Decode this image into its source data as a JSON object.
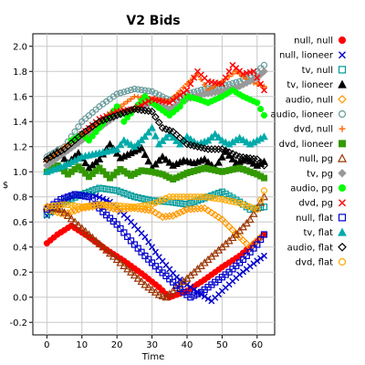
{
  "chart_data": {
    "type": "scatter",
    "title": "V2 Bids",
    "xlabel": "Time",
    "ylabel": "$",
    "xlim": [
      -4,
      65
    ],
    "ylim": [
      -0.3,
      2.1
    ],
    "xticks": [
      "0",
      "10",
      "20",
      "30",
      "40",
      "50",
      "60"
    ],
    "xtick_values": [
      0,
      10,
      20,
      30,
      40,
      50,
      60
    ],
    "yticks": [
      "-0.2",
      "0.0",
      "0.2",
      "0.4",
      "0.6",
      "0.8",
      "1.0",
      "1.2",
      "1.4",
      "1.6",
      "1.8",
      "2.0"
    ],
    "ytick_values": [
      -0.2,
      0.0,
      0.2,
      0.4,
      0.6,
      0.8,
      1.0,
      1.2,
      1.4,
      1.6,
      1.8,
      2.0
    ],
    "grid": true,
    "legend_position": "right",
    "series": [
      {
        "name": "null, null",
        "color": "#ff0000",
        "marker": "circle-filled",
        "points": [
          [
            0,
            0.43
          ],
          [
            3,
            0.5
          ],
          [
            7,
            0.57
          ],
          [
            12,
            0.48
          ],
          [
            17,
            0.38
          ],
          [
            22,
            0.29
          ],
          [
            27,
            0.19
          ],
          [
            32,
            0.08
          ],
          [
            35,
            0.0
          ],
          [
            40,
            0.05
          ],
          [
            45,
            0.14
          ],
          [
            50,
            0.24
          ],
          [
            55,
            0.33
          ],
          [
            60,
            0.45
          ],
          [
            62,
            0.5
          ]
        ]
      },
      {
        "name": "null, lioneer",
        "color": "#0000cc",
        "marker": "cross",
        "points": [
          [
            0,
            0.65
          ],
          [
            4,
            0.74
          ],
          [
            8,
            0.82
          ],
          [
            13,
            0.82
          ],
          [
            18,
            0.76
          ],
          [
            23,
            0.63
          ],
          [
            28,
            0.48
          ],
          [
            32,
            0.32
          ],
          [
            37,
            0.16
          ],
          [
            42,
            0.06
          ],
          [
            47,
            -0.03
          ],
          [
            50,
            0.05
          ],
          [
            55,
            0.18
          ],
          [
            60,
            0.29
          ],
          [
            62,
            0.33
          ]
        ]
      },
      {
        "name": "tv, null",
        "color": "#009999",
        "marker": "square",
        "points": [
          [
            0,
            0.66
          ],
          [
            5,
            0.76
          ],
          [
            10,
            0.82
          ],
          [
            15,
            0.87
          ],
          [
            20,
            0.85
          ],
          [
            25,
            0.8
          ],
          [
            30,
            0.77
          ],
          [
            35,
            0.76
          ],
          [
            40,
            0.74
          ],
          [
            45,
            0.79
          ],
          [
            50,
            0.84
          ],
          [
            55,
            0.76
          ],
          [
            58,
            0.7
          ],
          [
            62,
            0.72
          ]
        ]
      },
      {
        "name": "tv, lioneer",
        "color": "#000000",
        "marker": "triangle-filled",
        "points": [
          [
            0,
            1.1
          ],
          [
            3,
            1.17
          ],
          [
            6,
            1.07
          ],
          [
            9,
            1.15
          ],
          [
            12,
            1.03
          ],
          [
            15,
            1.1
          ],
          [
            18,
            1.22
          ],
          [
            21,
            1.11
          ],
          [
            24,
            1.15
          ],
          [
            27,
            1.19
          ],
          [
            30,
            1.03
          ],
          [
            33,
            1.12
          ],
          [
            36,
            1.05
          ],
          [
            39,
            1.09
          ],
          [
            42,
            1.07
          ],
          [
            45,
            1.1
          ],
          [
            48,
            1.03
          ],
          [
            51,
            1.16
          ],
          [
            54,
            1.07
          ],
          [
            57,
            1.1
          ],
          [
            60,
            1.05
          ],
          [
            62,
            1.08
          ]
        ]
      },
      {
        "name": "audio, null",
        "color": "#ff9900",
        "marker": "diamond",
        "points": [
          [
            0,
            0.7
          ],
          [
            5,
            0.66
          ],
          [
            10,
            0.71
          ],
          [
            15,
            0.73
          ],
          [
            20,
            0.7
          ],
          [
            25,
            0.71
          ],
          [
            30,
            0.69
          ],
          [
            33,
            0.64
          ],
          [
            36,
            0.65
          ],
          [
            40,
            0.7
          ],
          [
            45,
            0.71
          ],
          [
            50,
            0.62
          ],
          [
            55,
            0.48
          ],
          [
            58,
            0.4
          ],
          [
            61,
            0.48
          ]
        ]
      },
      {
        "name": "audio, lioneer",
        "color": "#669999",
        "marker": "circle",
        "points": [
          [
            0,
            1.12
          ],
          [
            5,
            1.2
          ],
          [
            10,
            1.4
          ],
          [
            15,
            1.52
          ],
          [
            20,
            1.62
          ],
          [
            25,
            1.66
          ],
          [
            30,
            1.64
          ],
          [
            35,
            1.57
          ],
          [
            40,
            1.62
          ],
          [
            45,
            1.66
          ],
          [
            50,
            1.68
          ],
          [
            55,
            1.72
          ],
          [
            60,
            1.8
          ],
          [
            62,
            1.85
          ]
        ]
      },
      {
        "name": "dvd, null",
        "color": "#ff6600",
        "marker": "plus",
        "points": [
          [
            0,
            1.08
          ],
          [
            5,
            1.2
          ],
          [
            10,
            1.28
          ],
          [
            15,
            1.4
          ],
          [
            20,
            1.5
          ],
          [
            25,
            1.6
          ],
          [
            30,
            1.58
          ],
          [
            35,
            1.56
          ],
          [
            40,
            1.7
          ],
          [
            43,
            1.78
          ],
          [
            46,
            1.65
          ],
          [
            50,
            1.72
          ],
          [
            54,
            1.8
          ],
          [
            58,
            1.72
          ],
          [
            62,
            1.68
          ]
        ]
      },
      {
        "name": "dvd, lioneer",
        "color": "#339900",
        "marker": "square-filled",
        "points": [
          [
            0,
            1.0
          ],
          [
            3,
            1.05
          ],
          [
            6,
            0.98
          ],
          [
            9,
            1.04
          ],
          [
            12,
            0.96
          ],
          [
            15,
            1.03
          ],
          [
            18,
            0.95
          ],
          [
            21,
            1.02
          ],
          [
            24,
            0.97
          ],
          [
            27,
            1.01
          ],
          [
            30,
            1.0
          ],
          [
            33,
            0.98
          ],
          [
            36,
            0.94
          ],
          [
            40,
            0.99
          ],
          [
            45,
            1.03
          ],
          [
            50,
            1.0
          ],
          [
            55,
            1.03
          ],
          [
            60,
            0.98
          ],
          [
            62,
            0.95
          ]
        ]
      },
      {
        "name": "null, pg",
        "color": "#993300",
        "marker": "triangle",
        "points": [
          [
            0,
            0.72
          ],
          [
            4,
            0.7
          ],
          [
            8,
            0.6
          ],
          [
            12,
            0.5
          ],
          [
            16,
            0.4
          ],
          [
            20,
            0.3
          ],
          [
            24,
            0.2
          ],
          [
            28,
            0.1
          ],
          [
            32,
            0.02
          ],
          [
            34,
            0.0
          ],
          [
            38,
            0.1
          ],
          [
            42,
            0.2
          ],
          [
            46,
            0.3
          ],
          [
            50,
            0.4
          ],
          [
            54,
            0.5
          ],
          [
            58,
            0.62
          ],
          [
            62,
            0.8
          ]
        ]
      },
      {
        "name": "tv, pg",
        "color": "#999999",
        "marker": "diamond-filled",
        "points": [
          [
            0,
            1.05
          ],
          [
            5,
            1.15
          ],
          [
            10,
            1.25
          ],
          [
            15,
            1.35
          ],
          [
            20,
            1.45
          ],
          [
            25,
            1.5
          ],
          [
            30,
            1.55
          ],
          [
            35,
            1.5
          ],
          [
            40,
            1.58
          ],
          [
            45,
            1.62
          ],
          [
            50,
            1.64
          ],
          [
            55,
            1.68
          ],
          [
            60,
            1.75
          ],
          [
            62,
            1.8
          ]
        ]
      },
      {
        "name": "audio, pg",
        "color": "#00ff00",
        "marker": "circle-filled",
        "points": [
          [
            7,
            1.25
          ],
          [
            10,
            1.3
          ],
          [
            12,
            1.25
          ],
          [
            15,
            1.35
          ],
          [
            18,
            1.45
          ],
          [
            20,
            1.52
          ],
          [
            22,
            1.4
          ],
          [
            25,
            1.5
          ],
          [
            28,
            1.6
          ],
          [
            30,
            1.55
          ],
          [
            35,
            1.45
          ],
          [
            38,
            1.52
          ],
          [
            40,
            1.6
          ],
          [
            43,
            1.58
          ],
          [
            46,
            1.55
          ],
          [
            50,
            1.6
          ],
          [
            53,
            1.65
          ],
          [
            56,
            1.6
          ],
          [
            60,
            1.55
          ],
          [
            62,
            1.45
          ]
        ]
      },
      {
        "name": "dvd, pg",
        "color": "#ff0000",
        "marker": "cross",
        "points": [
          [
            10,
            1.3
          ],
          [
            15,
            1.42
          ],
          [
            20,
            1.48
          ],
          [
            25,
            1.5
          ],
          [
            30,
            1.58
          ],
          [
            35,
            1.55
          ],
          [
            40,
            1.65
          ],
          [
            43,
            1.8
          ],
          [
            46,
            1.72
          ],
          [
            50,
            1.7
          ],
          [
            53,
            1.85
          ],
          [
            56,
            1.78
          ],
          [
            59,
            1.8
          ],
          [
            62,
            1.65
          ]
        ]
      },
      {
        "name": "null, flat",
        "color": "#0000cc",
        "marker": "square",
        "points": [
          [
            0,
            0.7
          ],
          [
            4,
            0.78
          ],
          [
            8,
            0.82
          ],
          [
            12,
            0.8
          ],
          [
            16,
            0.68
          ],
          [
            20,
            0.58
          ],
          [
            24,
            0.45
          ],
          [
            28,
            0.33
          ],
          [
            32,
            0.22
          ],
          [
            36,
            0.12
          ],
          [
            39,
            0.04
          ],
          [
            41,
            0.0
          ],
          [
            44,
            0.04
          ],
          [
            48,
            0.12
          ],
          [
            52,
            0.2
          ],
          [
            56,
            0.3
          ],
          [
            60,
            0.42
          ],
          [
            62,
            0.5
          ]
        ]
      },
      {
        "name": "tv, flat",
        "color": "#00aaaa",
        "marker": "triangle-filled",
        "points": [
          [
            0,
            1.0
          ],
          [
            5,
            1.05
          ],
          [
            10,
            1.12
          ],
          [
            15,
            1.15
          ],
          [
            20,
            1.18
          ],
          [
            22,
            1.25
          ],
          [
            25,
            1.2
          ],
          [
            28,
            1.28
          ],
          [
            30,
            1.35
          ],
          [
            32,
            1.22
          ],
          [
            35,
            1.3
          ],
          [
            38,
            1.22
          ],
          [
            40,
            1.28
          ],
          [
            43,
            1.22
          ],
          [
            46,
            1.25
          ],
          [
            48,
            1.3
          ],
          [
            50,
            1.25
          ],
          [
            52,
            1.22
          ],
          [
            55,
            1.27
          ],
          [
            58,
            1.22
          ],
          [
            62,
            1.28
          ]
        ]
      },
      {
        "name": "audio, flat",
        "color": "#000000",
        "marker": "diamond",
        "points": [
          [
            0,
            1.1
          ],
          [
            5,
            1.18
          ],
          [
            10,
            1.3
          ],
          [
            15,
            1.4
          ],
          [
            20,
            1.45
          ],
          [
            25,
            1.5
          ],
          [
            30,
            1.48
          ],
          [
            33,
            1.35
          ],
          [
            36,
            1.32
          ],
          [
            40,
            1.22
          ],
          [
            43,
            1.2
          ],
          [
            46,
            1.18
          ],
          [
            50,
            1.18
          ],
          [
            55,
            1.12
          ],
          [
            60,
            1.1
          ],
          [
            62,
            1.05
          ]
        ]
      },
      {
        "name": "dvd, flat",
        "color": "#ffaa00",
        "marker": "circle",
        "points": [
          [
            0,
            0.72
          ],
          [
            5,
            0.74
          ],
          [
            10,
            0.72
          ],
          [
            15,
            0.74
          ],
          [
            20,
            0.73
          ],
          [
            25,
            0.72
          ],
          [
            30,
            0.74
          ],
          [
            35,
            0.8
          ],
          [
            40,
            0.8
          ],
          [
            45,
            0.8
          ],
          [
            50,
            0.78
          ],
          [
            55,
            0.75
          ],
          [
            60,
            0.7
          ],
          [
            62,
            0.85
          ]
        ]
      }
    ]
  }
}
